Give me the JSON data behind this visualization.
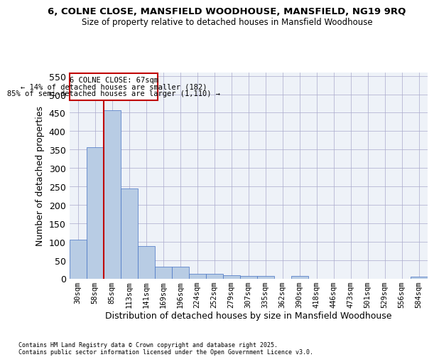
{
  "title": "6, COLNE CLOSE, MANSFIELD WOODHOUSE, MANSFIELD, NG19 9RQ",
  "subtitle": "Size of property relative to detached houses in Mansfield Woodhouse",
  "xlabel": "Distribution of detached houses by size in Mansfield Woodhouse",
  "ylabel": "Number of detached properties",
  "categories": [
    "30sqm",
    "58sqm",
    "85sqm",
    "113sqm",
    "141sqm",
    "169sqm",
    "196sqm",
    "224sqm",
    "252sqm",
    "279sqm",
    "307sqm",
    "335sqm",
    "362sqm",
    "390sqm",
    "418sqm",
    "446sqm",
    "473sqm",
    "501sqm",
    "529sqm",
    "556sqm",
    "584sqm"
  ],
  "values": [
    105,
    357,
    457,
    245,
    88,
    31,
    31,
    13,
    13,
    8,
    6,
    6,
    0,
    6,
    0,
    0,
    0,
    0,
    0,
    0,
    5
  ],
  "bar_color": "#b8cce4",
  "bar_edge_color": "#4472c4",
  "vline_color": "#c00000",
  "ylim": [
    0,
    560
  ],
  "yticks": [
    0,
    50,
    100,
    150,
    200,
    250,
    300,
    350,
    400,
    450,
    500,
    550
  ],
  "annotation_title": "6 COLNE CLOSE: 67sqm",
  "annotation_line1": "← 14% of detached houses are smaller (182)",
  "annotation_line2": "85% of semi-detached houses are larger (1,110) →",
  "annotation_box_color": "#c00000",
  "bg_color": "#eef2f8",
  "footnote1": "Contains HM Land Registry data © Crown copyright and database right 2025.",
  "footnote2": "Contains public sector information licensed under the Open Government Licence v3.0."
}
